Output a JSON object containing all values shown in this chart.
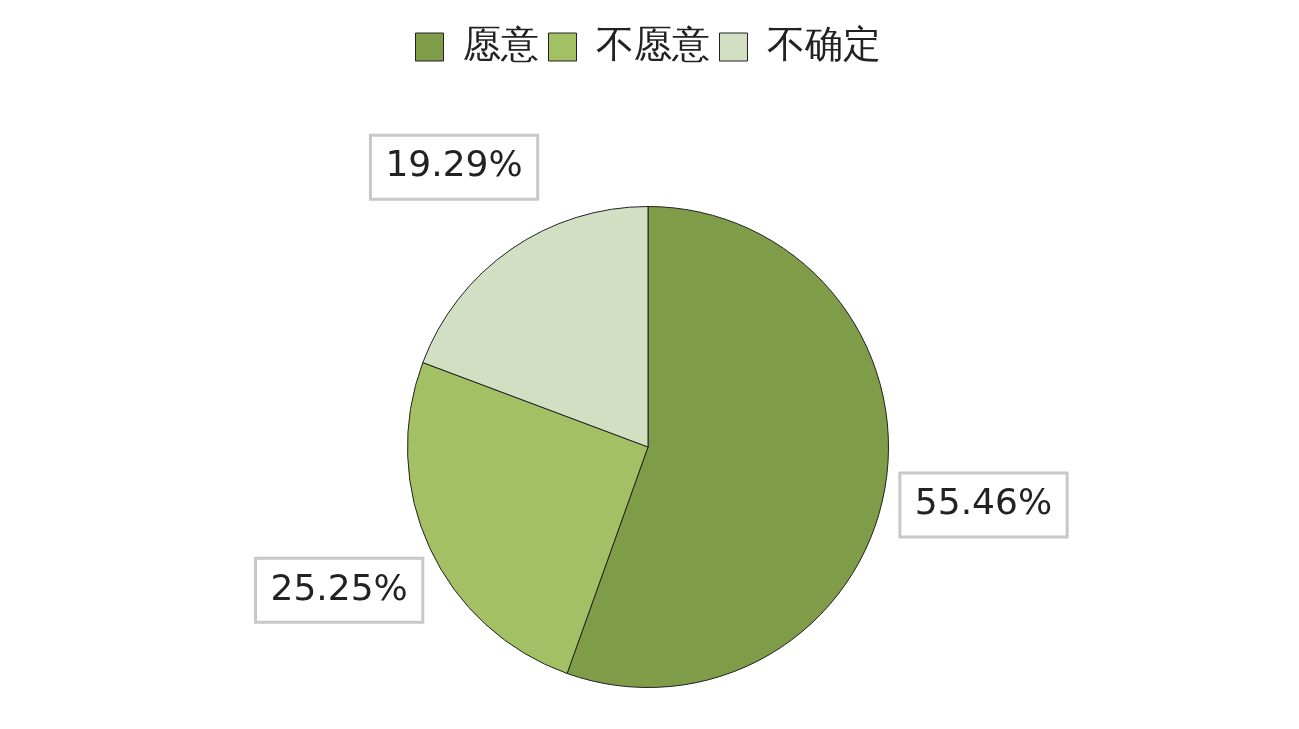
{
  "chart_data": {
    "type": "pie",
    "categories": [
      "愿意",
      "不愿意",
      "不确定"
    ],
    "values": [
      55.46,
      25.25,
      19.29
    ],
    "colors": [
      "#7f9c48",
      "#a3c064",
      "#d3dfc3"
    ],
    "value_labels": [
      "55.46%",
      "25.25%",
      "19.29%"
    ],
    "legend": "top"
  }
}
